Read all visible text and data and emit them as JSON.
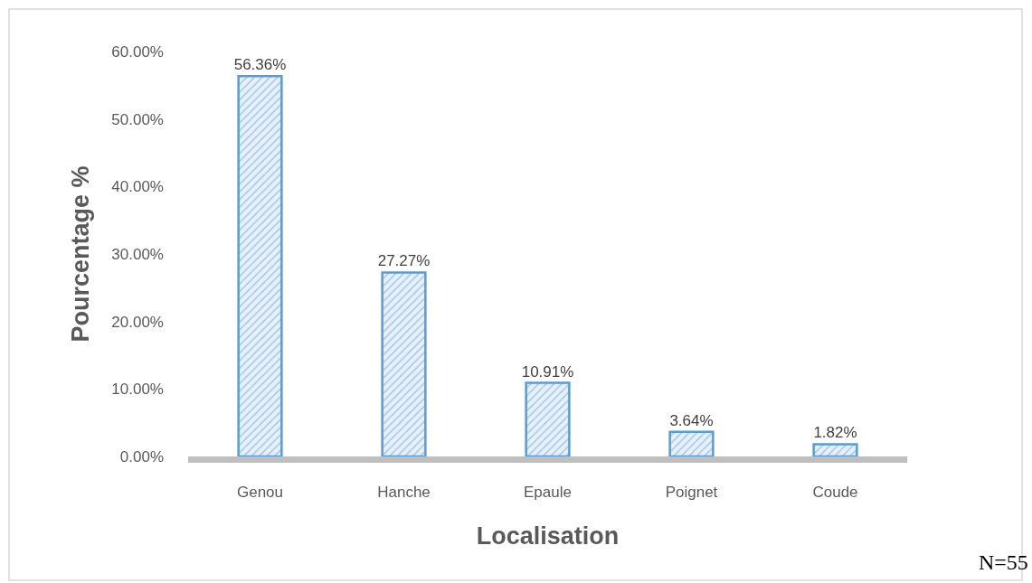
{
  "chart_data": {
    "type": "bar",
    "xlabel": "Localisation",
    "ylabel": "Pourcentage %",
    "categories": [
      "Genou",
      "Hanche",
      "Epaule",
      "Poignet",
      "Coude"
    ],
    "values": [
      56.36,
      27.27,
      10.91,
      3.64,
      1.82
    ],
    "value_labels": [
      "56.36%",
      "27.27%",
      "10.91%",
      "3.64%",
      "1.82%"
    ],
    "color": "#5b9bd5",
    "ylim": [
      0,
      60
    ],
    "yticks": [
      {
        "value": 0,
        "label": "0.00%"
      },
      {
        "value": 10,
        "label": "10.00%"
      },
      {
        "value": 20,
        "label": "20.00%"
      },
      {
        "value": 30,
        "label": "30.00%"
      },
      {
        "value": 40,
        "label": "40.00%"
      },
      {
        "value": 50,
        "label": "50.00%"
      },
      {
        "value": 60,
        "label": "60.00%"
      }
    ],
    "annotations": [
      "N=55"
    ]
  }
}
